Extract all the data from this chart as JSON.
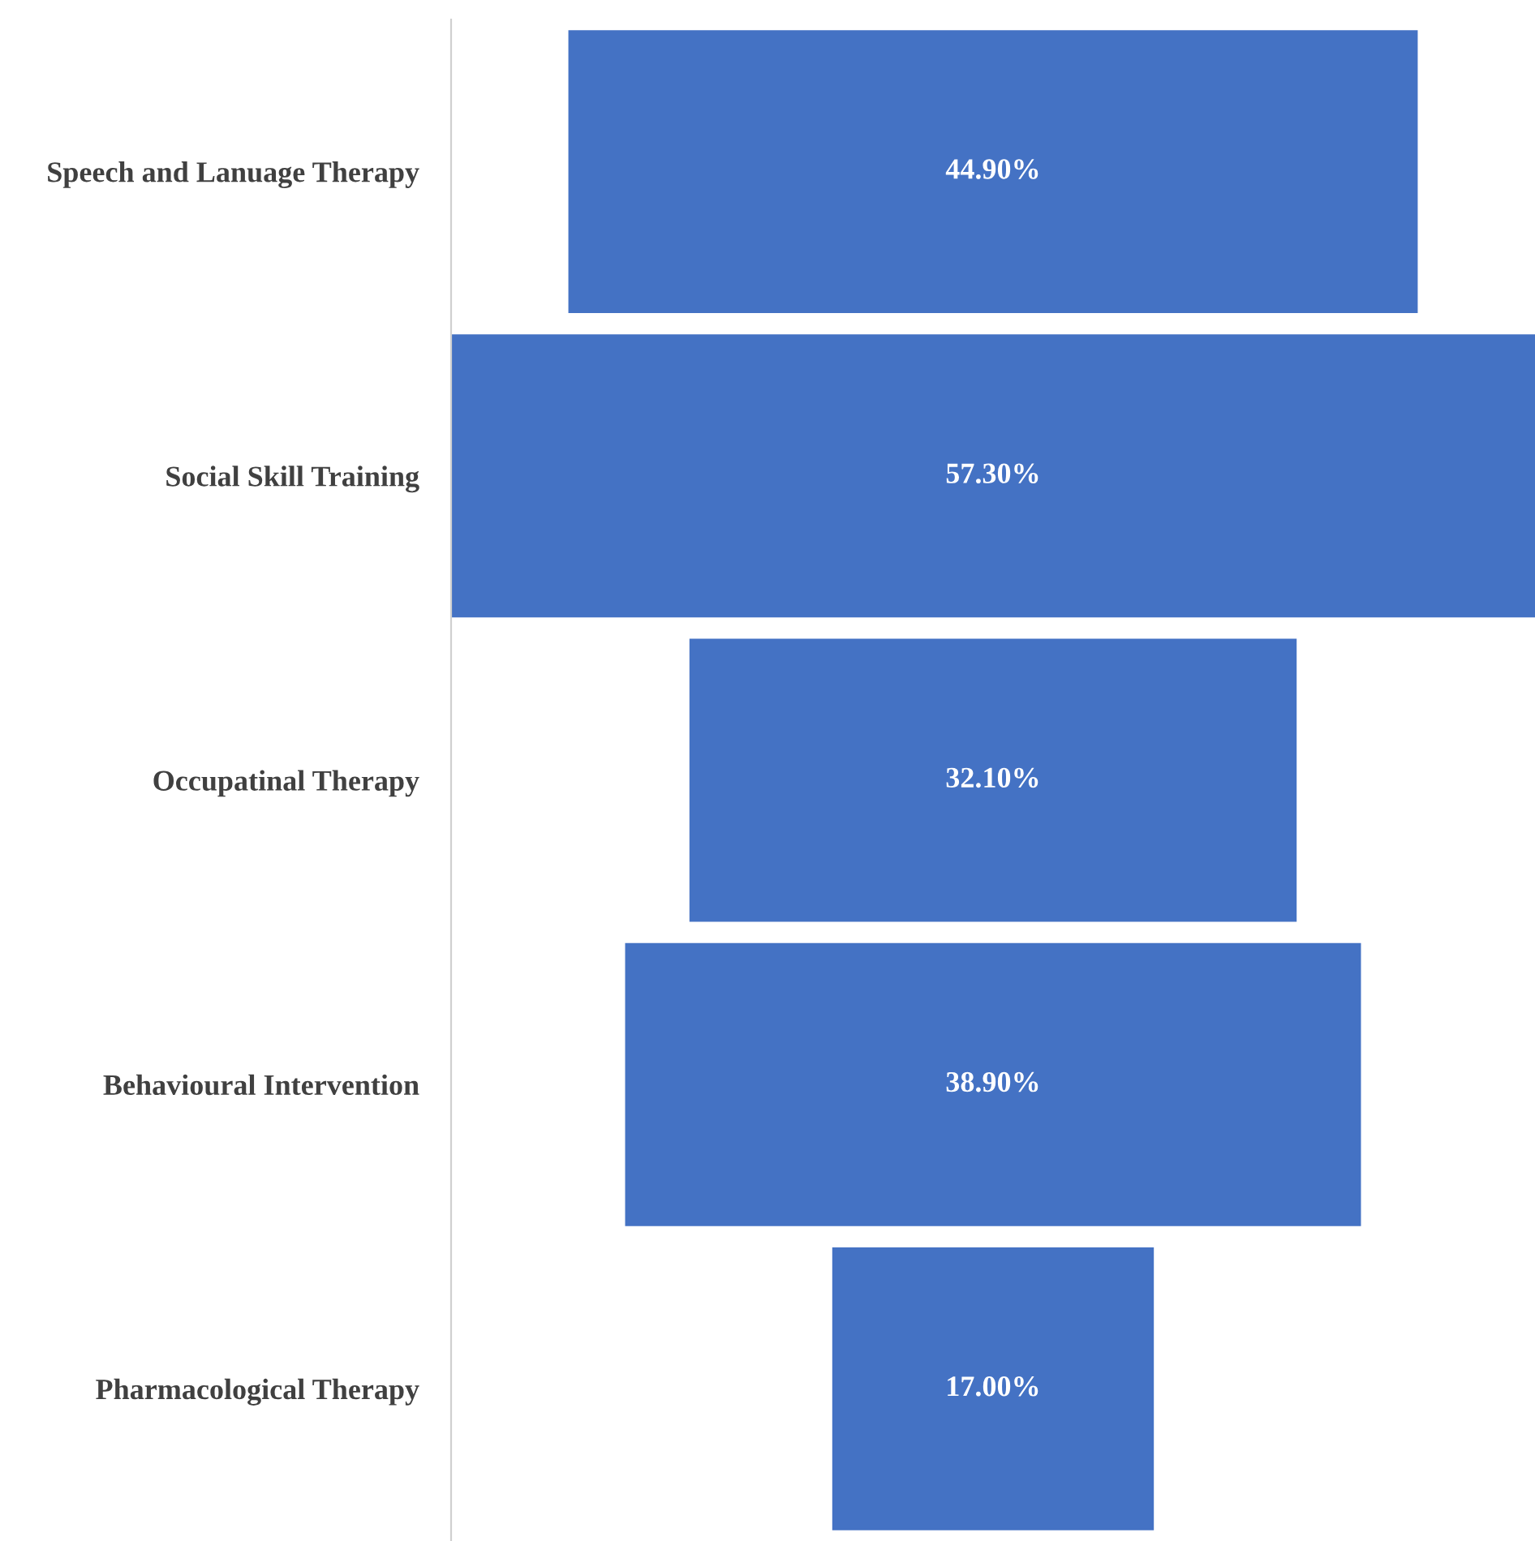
{
  "chart_data": {
    "type": "other",
    "categories": [
      "Speech and Lanuage Therapy",
      "Social Skill Training",
      "Occupatinal Therapy",
      "Behavioural Intervention",
      "Pharmacological Therapy"
    ],
    "values": [
      44.9,
      57.3,
      32.1,
      38.9,
      17.0
    ],
    "value_labels": [
      "44.90%",
      "57.30%",
      "32.10%",
      "38.90%",
      "17.00%"
    ],
    "color": "#4472c4"
  }
}
